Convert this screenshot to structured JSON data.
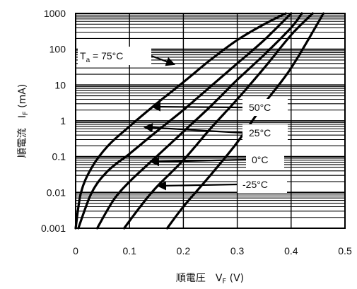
{
  "chart_data": {
    "type": "line",
    "xlabel": "順電圧　V",
    "xlabel_sub": "F",
    "xlabel_unit": " (V)",
    "ylabel": "順電流　I",
    "ylabel_sub": "F",
    "ylabel_unit": " (mA)",
    "xlim": [
      0,
      0.5
    ],
    "ylim": [
      0.001,
      1000
    ],
    "y_scale": "log",
    "grid": true,
    "x_ticks": [
      "0",
      "0.1",
      "0.2",
      "0.3",
      "0.4",
      "0.5"
    ],
    "y_ticks": [
      "0.001",
      "0.01",
      "0.1",
      "1",
      "10",
      "100",
      "1000"
    ],
    "series": [
      {
        "name": "T",
        "name_sub": "a",
        "name_tail": " = 75°C",
        "x": [
          0.0,
          0.01,
          0.03,
          0.06,
          0.1,
          0.15,
          0.2,
          0.25,
          0.3,
          0.35,
          0.39
        ],
        "y": [
          0.001,
          0.01,
          0.05,
          0.2,
          0.7,
          3,
          12,
          50,
          180,
          500,
          1000
        ]
      },
      {
        "name": "50°C",
        "x": [
          0.005,
          0.03,
          0.06,
          0.1,
          0.15,
          0.2,
          0.25,
          0.3,
          0.35,
          0.4
        ],
        "y": [
          0.001,
          0.01,
          0.04,
          0.12,
          0.5,
          2,
          9,
          40,
          180,
          1000
        ]
      },
      {
        "name": "25°C",
        "x": [
          0.04,
          0.07,
          0.1,
          0.15,
          0.2,
          0.25,
          0.3,
          0.35,
          0.4,
          0.42
        ],
        "y": [
          0.001,
          0.006,
          0.02,
          0.1,
          0.5,
          2.5,
          14,
          70,
          400,
          1000
        ]
      },
      {
        "name": "0°C",
        "x": [
          0.09,
          0.12,
          0.15,
          0.2,
          0.25,
          0.3,
          0.35,
          0.4,
          0.44
        ],
        "y": [
          0.001,
          0.004,
          0.014,
          0.08,
          0.6,
          4,
          30,
          250,
          1000
        ]
      },
      {
        "name": "-25°C",
        "x": [
          0.17,
          0.2,
          0.25,
          0.3,
          0.35,
          0.4,
          0.46
        ],
        "y": [
          0.001,
          0.004,
          0.03,
          0.25,
          3,
          30,
          1000
        ]
      }
    ]
  }
}
